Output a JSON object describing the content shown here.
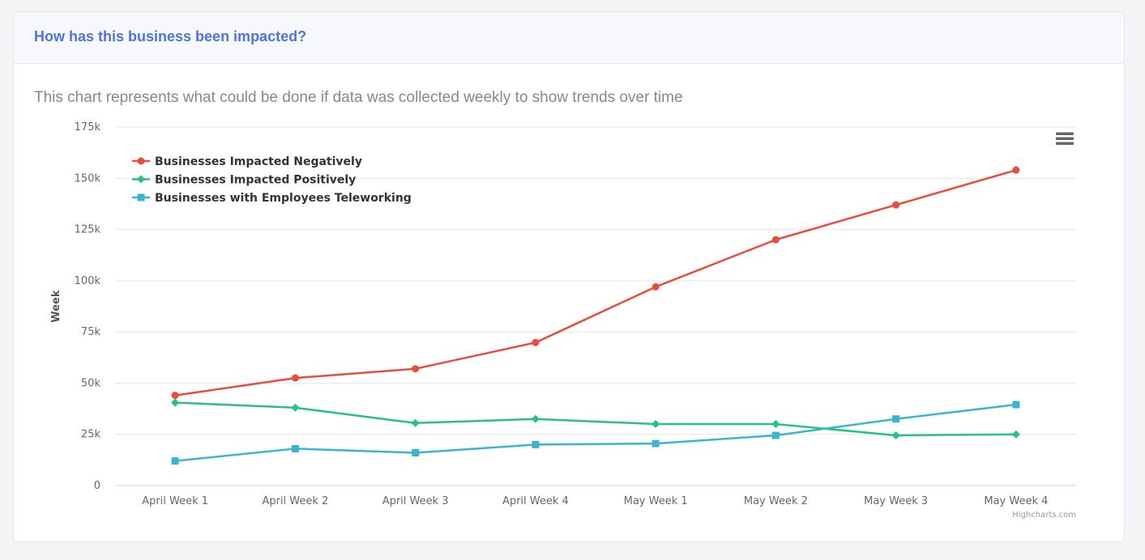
{
  "card": {
    "title": "How has this business been impacted?",
    "subtitle": "This chart represents what could be done if data was collected weekly to show trends over time"
  },
  "chart_data": {
    "type": "line",
    "categories": [
      "April Week 1",
      "April Week 2",
      "April Week 3",
      "April Week 4",
      "May Week 1",
      "May Week 2",
      "May Week 3",
      "May Week 4"
    ],
    "ylabel": "Week",
    "ylim": [
      0,
      175000
    ],
    "yticks": [
      0,
      25000,
      50000,
      75000,
      100000,
      125000,
      150000,
      175000
    ],
    "ytick_labels": [
      "0",
      "25k",
      "50k",
      "75k",
      "100k",
      "125k",
      "150k",
      "175k"
    ],
    "grid": true,
    "legend_position": "top-left",
    "series": [
      {
        "name": "Businesses Impacted Negatively",
        "color": "#e74c3c",
        "marker": "circle",
        "values": [
          44000,
          52500,
          57000,
          69800,
          97000,
          120000,
          137000,
          154000
        ]
      },
      {
        "name": "Businesses Impacted Positively",
        "color": "#26c281",
        "marker": "diamond",
        "values": [
          40500,
          38000,
          30500,
          32500,
          30000,
          30000,
          24500,
          25000
        ]
      },
      {
        "name": "Businesses with Employees Teleworking",
        "color": "#3bb4cd",
        "marker": "square",
        "values": [
          12000,
          18000,
          16000,
          20000,
          20500,
          24500,
          32500,
          39500
        ]
      }
    ],
    "credits": "Highcharts.com"
  },
  "icons": {
    "menu": "hamburger-icon"
  }
}
